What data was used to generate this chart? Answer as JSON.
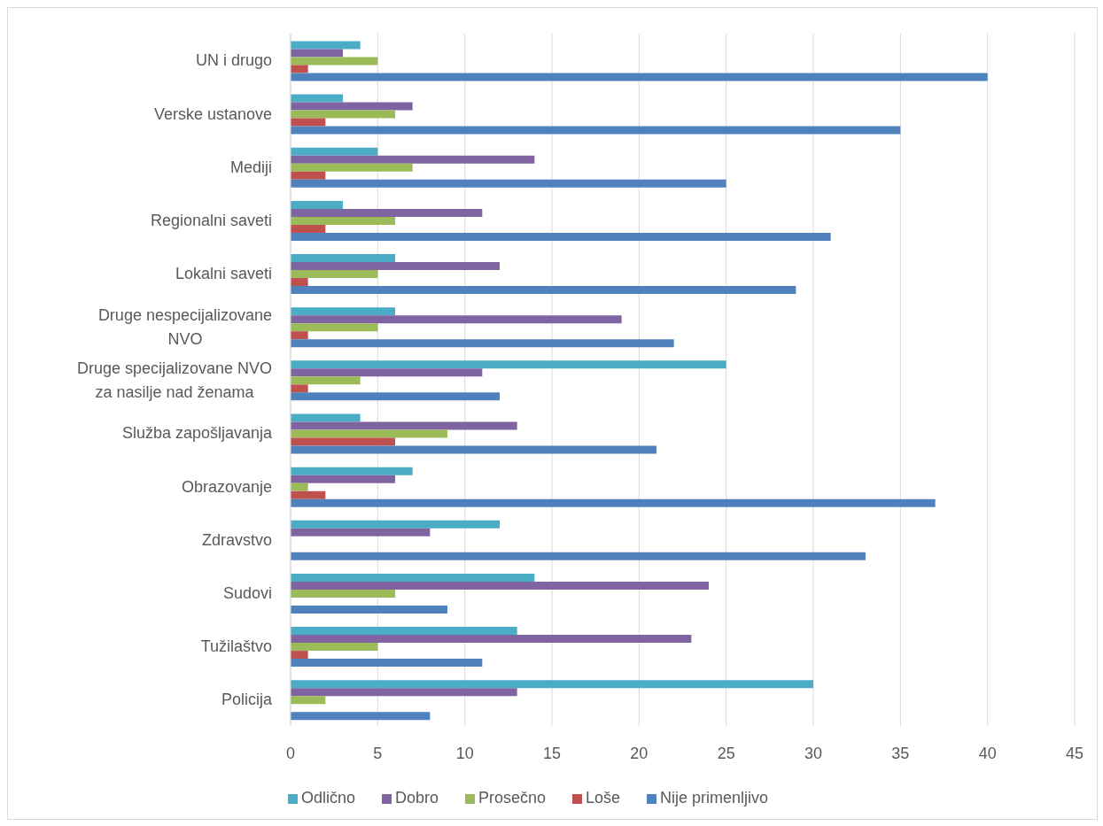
{
  "chart_data": {
    "type": "bar",
    "orientation": "horizontal",
    "categories": [
      "UN i drugo",
      "Verske ustanove",
      "Mediji",
      "Regionalni saveti",
      "Lokalni saveti",
      "Druge nespecijalizovane NVO",
      "Druge specijalizovane NVO za nasilje nad ženama",
      "Služba zapošljavanja",
      "Obrazovanje",
      "Zdravstvo",
      "Sudovi",
      "Tužilaštvo",
      "Policija"
    ],
    "series": [
      {
        "name": "Odlično",
        "color": "#4bacc6",
        "values": [
          4,
          3,
          5,
          3,
          6,
          6,
          25,
          4,
          7,
          12,
          14,
          13,
          30
        ]
      },
      {
        "name": "Dobro",
        "color": "#8064a2",
        "values": [
          3,
          7,
          14,
          11,
          12,
          19,
          11,
          13,
          6,
          8,
          24,
          23,
          13
        ]
      },
      {
        "name": "Prosečno",
        "color": "#9bbb59",
        "values": [
          5,
          6,
          7,
          6,
          5,
          5,
          4,
          9,
          1,
          null,
          6,
          5,
          2
        ]
      },
      {
        "name": "Loše",
        "color": "#c0504d",
        "values": [
          1,
          2,
          2,
          2,
          1,
          1,
          1,
          6,
          2,
          null,
          null,
          1,
          null
        ]
      },
      {
        "name": "Nije primenljivo",
        "color": "#4f81bd",
        "values": [
          40,
          35,
          25,
          31,
          29,
          22,
          12,
          21,
          37,
          33,
          9,
          11,
          8
        ]
      }
    ],
    "xlim": [
      0,
      45
    ],
    "xticks": [
      0,
      5,
      10,
      15,
      20,
      25,
      30,
      35,
      40,
      45
    ],
    "grid": "x",
    "legend": "bottom"
  }
}
